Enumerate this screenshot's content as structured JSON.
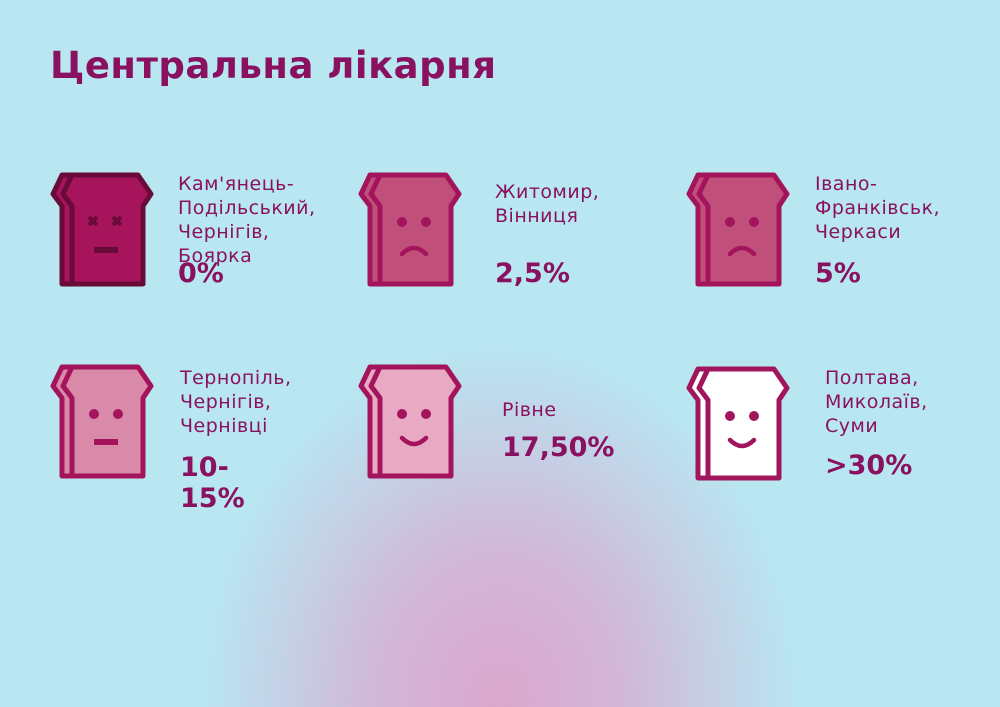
{
  "title": "Центральна лікарня",
  "items": [
    {
      "label": [
        "Кам'янець-",
        "Подільський,",
        "Чернігів,",
        "Боярка"
      ],
      "value": "0%",
      "fill": "#a6145c",
      "stroke": "#6a0a38",
      "face": "dead"
    },
    {
      "label": [
        "Житомир,",
        "Вінниця"
      ],
      "value": "2,5%",
      "fill": "#c0507a",
      "stroke": "#a4145c",
      "face": "sad"
    },
    {
      "label": [
        "Івано-",
        "Франківськ,",
        "Черкаси"
      ],
      "value": "5%",
      "fill": "#c0507a",
      "stroke": "#a4145c",
      "face": "sad"
    },
    {
      "label": [
        "Тернопіль,",
        "Чернігів,",
        "Чернівці"
      ],
      "value": "10-15%",
      "fill": "#d88aa8",
      "stroke": "#a4145c",
      "face": "neutral"
    },
    {
      "label": [
        "Рівне"
      ],
      "value": "17,50%",
      "fill": "#e8aac2",
      "stroke": "#a4145c",
      "face": "happy"
    },
    {
      "label": [
        "Полтава,",
        "Миколаїв,",
        "Суми"
      ],
      "value": ">30%",
      "fill": "#ffffff",
      "stroke": "#a0155c",
      "face": "happy"
    }
  ]
}
